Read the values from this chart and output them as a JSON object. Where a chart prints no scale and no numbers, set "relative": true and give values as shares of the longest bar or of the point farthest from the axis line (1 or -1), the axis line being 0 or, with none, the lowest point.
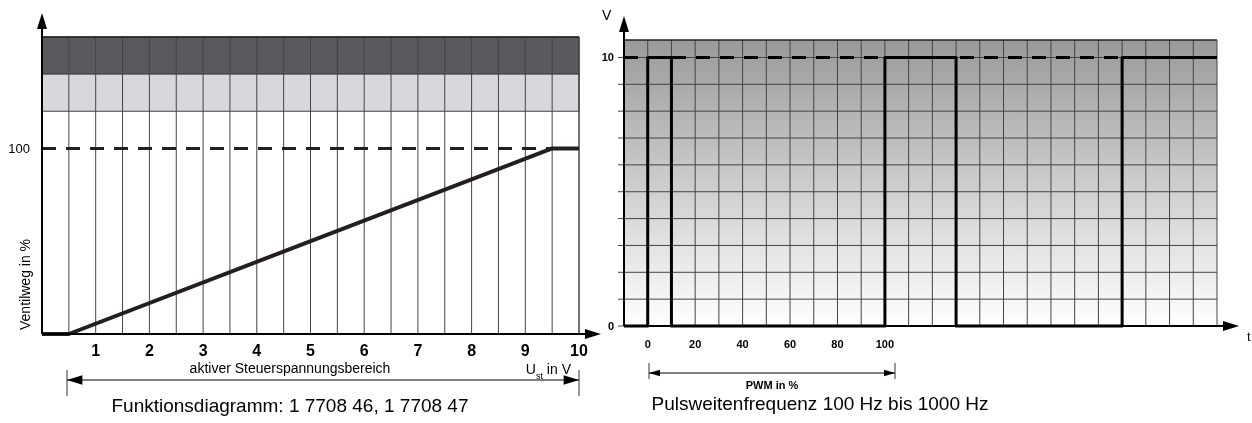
{
  "chart_data": [
    {
      "type": "line",
      "xlabel": "U$_{st}$ in V",
      "ylabel": "Ventilweg in %",
      "x": [
        0,
        0.5,
        9.5,
        10
      ],
      "series": [
        {
          "color": "#231f20",
          "values": [
            0,
            0,
            1,
            1
          ]
        }
      ],
      "relative": true,
      "xlim": [
        0,
        10
      ],
      "xticks": [
        {
          "value": 0.5,
          "label": null
        },
        1,
        {
          "value": 1.5,
          "label": null
        },
        2,
        {
          "value": 2.5,
          "label": null
        },
        3,
        {
          "value": 3.5,
          "label": null
        },
        4,
        {
          "value": 4.5,
          "label": null
        },
        5,
        {
          "value": 5.5,
          "label": null
        },
        6,
        {
          "value": 6.5,
          "label": null
        },
        7,
        {
          "value": 7.5,
          "label": null
        },
        8,
        {
          "value": 8.5,
          "label": null
        },
        9,
        {
          "value": 9.5,
          "label": null
        },
        10
      ],
      "grid": "x",
      "line_style": "solid",
      "ref_lines": [
        {
          "axis": "y",
          "value": 1,
          "label": "100",
          "color": "#231f20",
          "line_style": "dashed"
        }
      ],
      "bands": [
        {
          "axis": "y",
          "from": 1.4,
          "to": 1.6,
          "color": "#5a5a5e"
        },
        {
          "axis": "y",
          "from": 1.2,
          "to": 1.4,
          "color": "#d8d8dc"
        }
      ],
      "annotations": [
        "aktiver Steuerspannungsbereich",
        "Funktionsdiagramm: 1 7708 46, 1 7708 47"
      ]
    },
    {
      "type": "line",
      "xlabel": "t",
      "ylabel": "V",
      "x": [
        -10,
        0,
        0,
        10,
        10,
        100,
        100,
        130,
        130,
        200,
        200,
        240
      ],
      "series": [
        {
          "color": "#000000",
          "values": [
            0,
            0,
            10,
            10,
            0,
            0,
            10,
            10,
            0,
            0,
            10,
            10
          ]
        }
      ],
      "xlim": [
        -10,
        240
      ],
      "xticks": [
        0,
        {
          "value": 10,
          "label": null
        },
        20,
        {
          "value": 30,
          "label": null
        },
        40,
        {
          "value": 50,
          "label": null
        },
        60,
        {
          "value": 70,
          "label": null
        },
        80,
        {
          "value": 90,
          "label": null
        },
        100,
        {
          "value": 110,
          "label": null
        },
        {
          "value": 120,
          "label": null
        },
        {
          "value": 130,
          "label": null
        },
        {
          "value": 140,
          "label": null
        },
        {
          "value": 150,
          "label": null
        },
        {
          "value": 160,
          "label": null
        },
        {
          "value": 170,
          "label": null
        },
        {
          "value": 180,
          "label": null
        },
        {
          "value": 190,
          "label": null
        },
        {
          "value": 200,
          "label": null
        },
        {
          "value": 210,
          "label": null
        },
        {
          "value": 220,
          "label": null
        },
        {
          "value": 230,
          "label": null
        }
      ],
      "ylim": [
        0,
        10.65
      ],
      "yticks": [
        0,
        {
          "value": 1,
          "label": null
        },
        {
          "value": 2,
          "label": null
        },
        {
          "value": 3,
          "label": null
        },
        {
          "value": 4,
          "label": null
        },
        {
          "value": 5,
          "label": null
        },
        {
          "value": 6,
          "label": null
        },
        {
          "value": 7,
          "label": null
        },
        {
          "value": 8,
          "label": null
        },
        {
          "value": 9,
          "label": null
        },
        10
      ],
      "grid": true,
      "line_style": "solid",
      "ref_lines": [
        {
          "axis": "y",
          "value": 10,
          "color": "#000000",
          "line_style": "dashed"
        }
      ],
      "annotations": [
        "PWM in %",
        "Pulsweitenfrequenz 100 Hz bis 1000 Hz"
      ]
    }
  ]
}
